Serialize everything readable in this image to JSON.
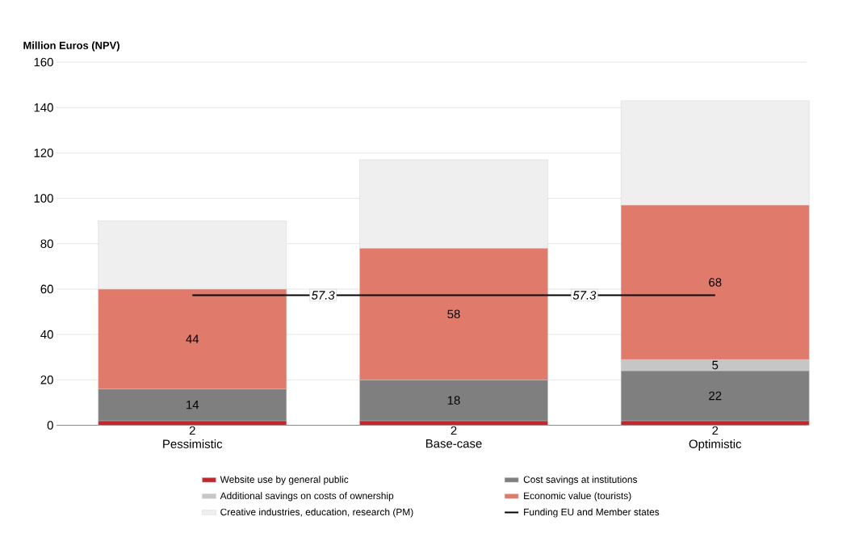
{
  "chart_data": {
    "type": "bar",
    "stacked": true,
    "ylabel": "Million Euros (NPV)",
    "categories": [
      "Pessimistic",
      "Base-case",
      "Optimistic"
    ],
    "series": [
      {
        "name": "Website use by general public",
        "color": "#c0282d",
        "values": [
          2,
          2,
          2
        ],
        "value_labels": [
          "2",
          "2",
          "2"
        ]
      },
      {
        "name": "Cost savings at institutions",
        "color": "#7f7f7f",
        "values": [
          14,
          18,
          22
        ],
        "value_labels": [
          "14",
          "18",
          "22"
        ]
      },
      {
        "name": "Additional savings on costs of ownership",
        "color": "#c6c6c6",
        "values": [
          null,
          null,
          5
        ],
        "value_labels": [
          null,
          null,
          "5"
        ]
      },
      {
        "name": "Economic value (tourists)",
        "color": "#e07b6c",
        "values": [
          44,
          58,
          68
        ],
        "value_labels": [
          "44",
          "58",
          "68"
        ]
      },
      {
        "name": "Creative industries, education, research (PM)",
        "color": "#efefef",
        "values": [
          30,
          39,
          46
        ]
      },
      {
        "name": "Funding EU and Member states",
        "type": "line",
        "color": "#000000",
        "values": [
          57.3,
          57.3,
          57.3
        ]
      }
    ],
    "annotations": [
      {
        "text": "57.3",
        "y": 57.3
      },
      {
        "text": "57.3",
        "y": 57.3
      }
    ],
    "ylim": [
      0,
      160
    ],
    "yticks": [
      0,
      20,
      40,
      60,
      80,
      100,
      120,
      140,
      160
    ],
    "grid": "y",
    "legend": "bottom"
  }
}
